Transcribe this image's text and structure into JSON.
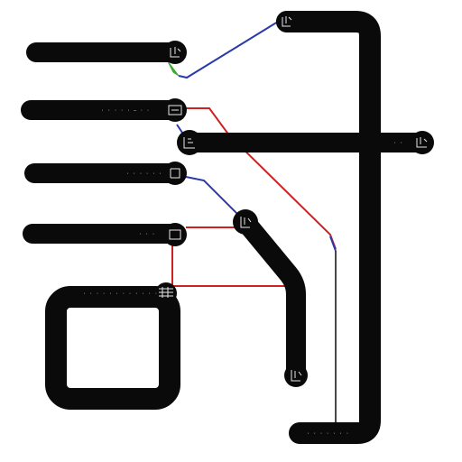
{
  "colors": {
    "background": "#ffffff",
    "wire": "#0a0a0a",
    "link_red": "#cc2222",
    "link_blue": "#2a3aa8",
    "link_green": "#3caa33",
    "node_text": "#e8e8e8"
  },
  "labels": {
    "row1": "",
    "row2": "· · · · · — · ·",
    "row3": "· · · · · ·",
    "row4": "· · ·",
    "box_header": "· · · · · · · · · · · ·",
    "crossbar_end": "· ·",
    "bottom_bar": "· · · · · · ·"
  }
}
